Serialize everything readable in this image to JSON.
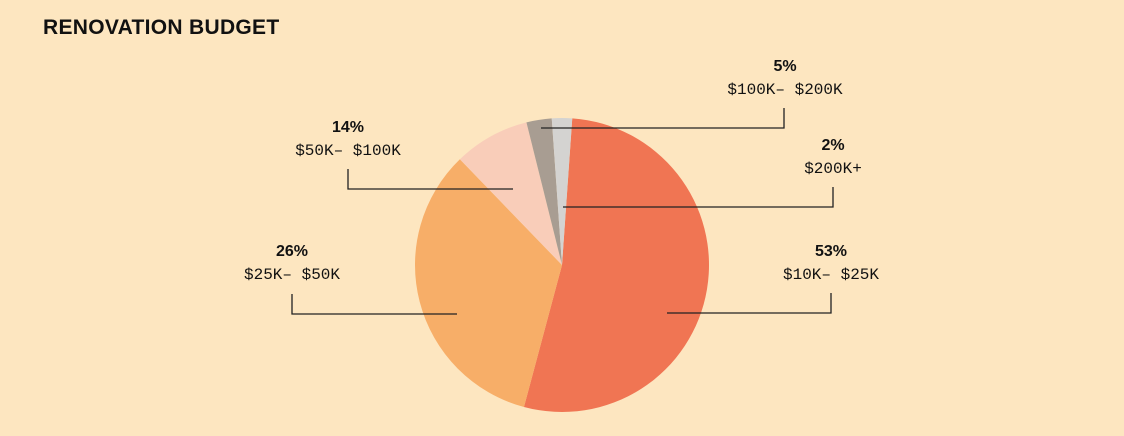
{
  "title": "RENOVATION BUDGET",
  "colors": {
    "background": "#fde6c0",
    "s10k_25k": "#f07553",
    "s25k_50k": "#f7ae68",
    "s50k_100k": "#f9cdb9",
    "s100k_200k": "#a89d92",
    "s200k_plus": "#d4d3d1"
  },
  "labels": {
    "l0": {
      "pct": "53%",
      "range": "$10K– $25K"
    },
    "l1": {
      "pct": "26%",
      "range": "$25K– $50K"
    },
    "l2": {
      "pct": "14%",
      "range": "$50K– $100K"
    },
    "l3": {
      "pct": "5%",
      "range": "$100K– $200K"
    },
    "l4": {
      "pct": "2%",
      "range": "$200K+"
    }
  },
  "chart_data": {
    "type": "pie",
    "title": "RENOVATION BUDGET",
    "categories": [
      "$10K– $25K",
      "$25K– $50K",
      "$50K– $100K",
      "$100K– $200K",
      "$200K+"
    ],
    "values": [
      53,
      26,
      14,
      5,
      2
    ],
    "unit": "%",
    "legend": "none (leader-line labels)"
  }
}
